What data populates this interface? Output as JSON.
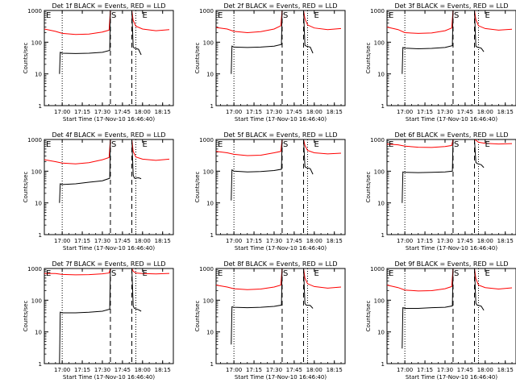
{
  "colors": {
    "background": "#ffffff",
    "axes": "#000000",
    "events": "#000000",
    "lld": "#ff0000"
  },
  "chart_data": [
    {
      "type": "line",
      "title": "Det 1f BLACK = Events, RED = LLD",
      "xlabel": "Start Time (17-Nov-10 16:46:40)",
      "ylabel": "Counts/sec",
      "xtick_labels": [
        "17:00",
        "17:15",
        "17:30",
        "17:45",
        "18:00",
        "18:15"
      ],
      "ytick_labels": [
        "1",
        "10",
        "100",
        "1000"
      ],
      "y_scale": "log",
      "ylim": [
        1,
        1000
      ],
      "xlim": [
        "16:46:40",
        "18:23:00"
      ],
      "markers": {
        "dotted": [
          "17:00",
          "17:55"
        ],
        "dashed": [
          "17:36",
          "17:52"
        ],
        "letters": [
          "E",
          "S",
          "E"
        ]
      },
      "series": [
        {
          "color": "red",
          "x": [
            "16:46:40",
            "16:55",
            "17:00",
            "17:10",
            "17:20",
            "17:30",
            "17:35",
            "17:36",
            "17:46",
            "17:52",
            "17:53",
            "17:55",
            "18:00",
            "18:10",
            "18:20"
          ],
          "y": [
            260,
            220,
            190,
            175,
            180,
            210,
            240,
            1000,
            1000,
            1000,
            480,
            320,
            260,
            230,
            250
          ]
        },
        {
          "color": "black",
          "x": [
            "16:58",
            "16:58.5",
            "17:00",
            "17:10",
            "17:20",
            "17:30",
            "17:35.5",
            "17:36",
            "17:52",
            "17:53",
            "17:54",
            "17:57",
            "17:59"
          ],
          "y": [
            10,
            48,
            45,
            44,
            45,
            48,
            55,
            1000,
            1000,
            70,
            65,
            60,
            40
          ]
        }
      ]
    },
    {
      "type": "line",
      "title": "Det 2f BLACK = Events, RED = LLD",
      "xlabel": "Start Time (17-Nov-10 16:46:40)",
      "ylabel": "Counts/sec",
      "xtick_labels": [
        "17:00",
        "17:15",
        "17:30",
        "17:45",
        "18:00",
        "18:15"
      ],
      "ytick_labels": [
        "1",
        "10",
        "100",
        "1000"
      ],
      "y_scale": "log",
      "ylim": [
        1,
        1000
      ],
      "xlim": [
        "16:46:40",
        "18:23:00"
      ],
      "markers": {
        "dotted": [
          "17:00",
          "17:55"
        ],
        "dashed": [
          "17:36",
          "17:52"
        ],
        "letters": [
          "E",
          "S",
          "E"
        ]
      },
      "series": [
        {
          "color": "red",
          "x": [
            "16:46:40",
            "16:55",
            "17:00",
            "17:10",
            "17:20",
            "17:30",
            "17:35",
            "17:36",
            "17:46",
            "17:52",
            "17:53",
            "17:55",
            "18:00",
            "18:10",
            "18:20"
          ],
          "y": [
            290,
            260,
            220,
            200,
            215,
            260,
            330,
            1000,
            1000,
            1000,
            560,
            350,
            280,
            250,
            270
          ]
        },
        {
          "color": "black",
          "x": [
            "16:58",
            "16:58.5",
            "17:00",
            "17:10",
            "17:20",
            "17:30",
            "17:35.5",
            "17:36",
            "17:52",
            "17:53",
            "17:54",
            "17:57",
            "17:59"
          ],
          "y": [
            10,
            75,
            70,
            68,
            70,
            75,
            85,
            1000,
            1000,
            80,
            75,
            70,
            45
          ]
        }
      ]
    },
    {
      "type": "line",
      "title": "Det 3f BLACK = Events, RED = LLD",
      "xlabel": "Start Time (17-Nov-10 16:46:40)",
      "ylabel": "Counts/sec",
      "xtick_labels": [
        "17:00",
        "17:15",
        "17:30",
        "17:45",
        "18:00",
        "18:15"
      ],
      "ytick_labels": [
        "1",
        "10",
        "100",
        "1000"
      ],
      "y_scale": "log",
      "ylim": [
        1,
        1000
      ],
      "xlim": [
        "16:46:40",
        "18:23:00"
      ],
      "markers": {
        "dotted": [
          "17:00",
          "17:55"
        ],
        "dashed": [
          "17:36",
          "17:52"
        ],
        "letters": [
          "E",
          "S",
          "E"
        ]
      },
      "series": [
        {
          "color": "red",
          "x": [
            "16:46:40",
            "16:55",
            "17:00",
            "17:10",
            "17:20",
            "17:30",
            "17:35",
            "17:36",
            "17:46",
            "17:52",
            "17:53",
            "17:55",
            "18:00",
            "18:10",
            "18:20"
          ],
          "y": [
            300,
            250,
            200,
            190,
            195,
            230,
            280,
            1000,
            1000,
            1000,
            520,
            330,
            270,
            240,
            255
          ]
        },
        {
          "color": "black",
          "x": [
            "16:58",
            "16:58.5",
            "17:00",
            "17:10",
            "17:20",
            "17:30",
            "17:35.5",
            "17:36",
            "17:52",
            "17:53",
            "17:54",
            "17:57",
            "17:59"
          ],
          "y": [
            10,
            68,
            65,
            62,
            64,
            68,
            78,
            1000,
            1000,
            75,
            70,
            65,
            50
          ]
        }
      ]
    },
    {
      "type": "line",
      "title": "Det 4f BLACK = Events, RED = LLD",
      "xlabel": "Start Time (17-Nov-10 16:46:40)",
      "ylabel": "Counts/sec",
      "xtick_labels": [
        "17:00",
        "17:15",
        "17:30",
        "17:45",
        "18:00",
        "18:15"
      ],
      "ytick_labels": [
        "1",
        "10",
        "100",
        "1000"
      ],
      "y_scale": "log",
      "ylim": [
        1,
        1000
      ],
      "xlim": [
        "16:46:40",
        "18:23:00"
      ],
      "markers": {
        "dotted": [
          "17:00",
          "17:55"
        ],
        "dashed": [
          "17:36",
          "17:52"
        ],
        "letters": [
          "E",
          "S",
          "E"
        ]
      },
      "series": [
        {
          "color": "red",
          "x": [
            "16:46:40",
            "16:55",
            "17:00",
            "17:10",
            "17:20",
            "17:30",
            "17:35",
            "17:36",
            "17:46",
            "17:52",
            "17:53",
            "17:55",
            "18:00",
            "18:10",
            "18:20"
          ],
          "y": [
            230,
            200,
            180,
            170,
            185,
            230,
            270,
            1000,
            1000,
            1000,
            420,
            280,
            240,
            220,
            240
          ]
        },
        {
          "color": "black",
          "x": [
            "16:58",
            "16:58.5",
            "17:00",
            "17:10",
            "17:20",
            "17:30",
            "17:35.5",
            "17:36",
            "17:52",
            "17:53",
            "17:54",
            "17:57",
            "17:59"
          ],
          "y": [
            10,
            40,
            38,
            40,
            45,
            50,
            60,
            1000,
            1000,
            75,
            60,
            62,
            58
          ]
        }
      ]
    },
    {
      "type": "line",
      "title": "Det 5f BLACK = Events, RED = LLD",
      "xlabel": "Start Time (17-Nov-10 16:46:40)",
      "ylabel": "Counts/sec",
      "xtick_labels": [
        "17:00",
        "17:15",
        "17:30",
        "17:45",
        "18:00",
        "18:15"
      ],
      "ytick_labels": [
        "1",
        "10",
        "100",
        "1000"
      ],
      "y_scale": "log",
      "ylim": [
        1,
        1000
      ],
      "xlim": [
        "16:46:40",
        "18:23:00"
      ],
      "markers": {
        "dotted": [
          "17:00",
          "17:55"
        ],
        "dashed": [
          "17:36",
          "17:52"
        ],
        "letters": [
          "E",
          "S",
          "E"
        ]
      },
      "series": [
        {
          "color": "red",
          "x": [
            "16:46:40",
            "16:55",
            "17:00",
            "17:10",
            "17:20",
            "17:30",
            "17:35",
            "17:36",
            "17:46",
            "17:52",
            "17:53",
            "17:55",
            "18:00",
            "18:10",
            "18:20"
          ],
          "y": [
            420,
            380,
            340,
            310,
            320,
            380,
            420,
            1000,
            1000,
            1000,
            650,
            450,
            380,
            350,
            370
          ]
        },
        {
          "color": "black",
          "x": [
            "16:58",
            "16:58.5",
            "17:00",
            "17:10",
            "17:20",
            "17:30",
            "17:35.5",
            "17:36",
            "17:52",
            "17:53",
            "17:54",
            "17:57",
            "17:59"
          ],
          "y": [
            12,
            110,
            100,
            95,
            98,
            105,
            115,
            1000,
            1000,
            140,
            130,
            120,
            80
          ]
        }
      ]
    },
    {
      "type": "line",
      "title": "Det 6f BLACK = Events, RED = LLD",
      "xlabel": "Start Time (17-Nov-10 16:46:40)",
      "ylabel": "Counts/sec",
      "xtick_labels": [
        "17:00",
        "17:15",
        "17:30",
        "17:45",
        "18:00",
        "18:15"
      ],
      "ytick_labels": [
        "1",
        "10",
        "100",
        "1000"
      ],
      "y_scale": "log",
      "ylim": [
        1,
        1000
      ],
      "xlim": [
        "16:46:40",
        "18:23:00"
      ],
      "markers": {
        "dotted": [
          "17:00",
          "17:55"
        ],
        "dashed": [
          "17:36",
          "17:52"
        ],
        "letters": [
          "E",
          "S",
          "E"
        ]
      },
      "series": [
        {
          "color": "red",
          "x": [
            "16:46:40",
            "16:55",
            "17:00",
            "17:10",
            "17:20",
            "17:30",
            "17:35",
            "17:36",
            "17:46",
            "17:52",
            "17:53",
            "17:55",
            "18:00",
            "18:10",
            "18:20"
          ],
          "y": [
            720,
            680,
            620,
            570,
            560,
            600,
            650,
            1000,
            1000,
            1000,
            950,
            820,
            760,
            720,
            740
          ]
        },
        {
          "color": "black",
          "x": [
            "16:58",
            "16:58.5",
            "17:00",
            "17:10",
            "17:20",
            "17:30",
            "17:35.5",
            "17:36",
            "17:52",
            "17:53",
            "17:54",
            "17:57",
            "17:59"
          ],
          "y": [
            10,
            95,
            92,
            90,
            92,
            95,
            100,
            1000,
            1000,
            190,
            175,
            160,
            130
          ]
        }
      ]
    },
    {
      "type": "line",
      "title": "Det 7f BLACK = Events, RED = LLD",
      "xlabel": "Start Time (17-Nov-10 16:46:40)",
      "ylabel": "Counts/sec",
      "xtick_labels": [
        "17:00",
        "17:15",
        "17:30",
        "17:45",
        "18:00",
        "18:15"
      ],
      "ytick_labels": [
        "1",
        "10",
        "100",
        "1000"
      ],
      "y_scale": "log",
      "ylim": [
        1,
        1000
      ],
      "xlim": [
        "16:46:40",
        "18:23:00"
      ],
      "markers": {
        "dotted": [
          "17:00",
          "17:55"
        ],
        "dashed": [
          "17:36",
          "17:52"
        ],
        "letters": [
          "E",
          "S",
          "E"
        ]
      },
      "series": [
        {
          "color": "red",
          "x": [
            "16:46:40",
            "16:55",
            "17:00",
            "17:10",
            "17:20",
            "17:30",
            "17:35",
            "17:36",
            "17:46",
            "17:52",
            "17:53",
            "17:55",
            "18:00",
            "18:10",
            "18:20"
          ],
          "y": [
            700,
            690,
            650,
            630,
            640,
            680,
            720,
            1000,
            1000,
            1000,
            820,
            720,
            690,
            670,
            700
          ]
        },
        {
          "color": "black",
          "x": [
            "16:58",
            "16:58.5",
            "17:00",
            "17:10",
            "17:20",
            "17:30",
            "17:35.5",
            "17:36",
            "17:52",
            "17:53",
            "17:54",
            "17:57",
            "17:59"
          ],
          "y": [
            1,
            42,
            40,
            40,
            42,
            45,
            52,
            1000,
            1000,
            65,
            55,
            50,
            45
          ]
        }
      ]
    },
    {
      "type": "line",
      "title": "Det 8f BLACK = Events, RED = LLD",
      "xlabel": "Start Time (17-Nov-10 16:46:40)",
      "ylabel": "Counts/sec",
      "xtick_labels": [
        "17:00",
        "17:15",
        "17:30",
        "17:45",
        "18:00",
        "18:15"
      ],
      "ytick_labels": [
        "1",
        "10",
        "100",
        "1000"
      ],
      "y_scale": "log",
      "ylim": [
        1,
        1000
      ],
      "xlim": [
        "16:46:40",
        "18:23:00"
      ],
      "markers": {
        "dotted": [
          "17:00",
          "17:55"
        ],
        "dashed": [
          "17:36",
          "17:52"
        ],
        "letters": [
          "E",
          "S",
          "E"
        ]
      },
      "series": [
        {
          "color": "red",
          "x": [
            "16:46:40",
            "16:55",
            "17:00",
            "17:10",
            "17:20",
            "17:30",
            "17:35",
            "17:36",
            "17:46",
            "17:52",
            "17:53",
            "17:55",
            "18:00",
            "18:10",
            "18:20"
          ],
          "y": [
            300,
            260,
            230,
            215,
            225,
            260,
            300,
            1000,
            1000,
            1000,
            500,
            330,
            270,
            240,
            260
          ]
        },
        {
          "color": "black",
          "x": [
            "16:58",
            "16:58.5",
            "17:00",
            "17:10",
            "17:20",
            "17:30",
            "17:35.5",
            "17:36",
            "17:52",
            "17:53",
            "17:54",
            "17:57",
            "17:59"
          ],
          "y": [
            4,
            62,
            60,
            58,
            60,
            64,
            70,
            1000,
            1000,
            78,
            70,
            68,
            55
          ]
        }
      ]
    },
    {
      "type": "line",
      "title": "Det 9f BLACK = Events, RED = LLD",
      "xlabel": "Start Time (17-Nov-10 16:46:40)",
      "ylabel": "Counts/sec",
      "xtick_labels": [
        "17:00",
        "17:15",
        "17:30",
        "17:45",
        "18:00",
        "18:15"
      ],
      "ytick_labels": [
        "1",
        "10",
        "100",
        "1000"
      ],
      "y_scale": "log",
      "ylim": [
        1,
        1000
      ],
      "xlim": [
        "16:46:40",
        "18:23:00"
      ],
      "markers": {
        "dotted": [
          "17:00",
          "17:55"
        ],
        "dashed": [
          "17:36",
          "17:52"
        ],
        "letters": [
          "E",
          "S",
          "E"
        ]
      },
      "series": [
        {
          "color": "red",
          "x": [
            "16:46:40",
            "16:55",
            "17:00",
            "17:10",
            "17:20",
            "17:30",
            "17:35",
            "17:36",
            "17:46",
            "17:52",
            "17:53",
            "17:55",
            "18:00",
            "18:10",
            "18:20"
          ],
          "y": [
            300,
            250,
            210,
            195,
            200,
            230,
            270,
            1000,
            1000,
            1000,
            480,
            300,
            250,
            225,
            245
          ]
        },
        {
          "color": "black",
          "x": [
            "16:58",
            "16:58.5",
            "17:00",
            "17:10",
            "17:20",
            "17:30",
            "17:35.5",
            "17:36",
            "17:52",
            "17:53",
            "17:54",
            "17:57",
            "17:59"
          ],
          "y": [
            3,
            58,
            55,
            55,
            58,
            60,
            66,
            1000,
            1000,
            80,
            70,
            65,
            48
          ]
        }
      ]
    }
  ]
}
